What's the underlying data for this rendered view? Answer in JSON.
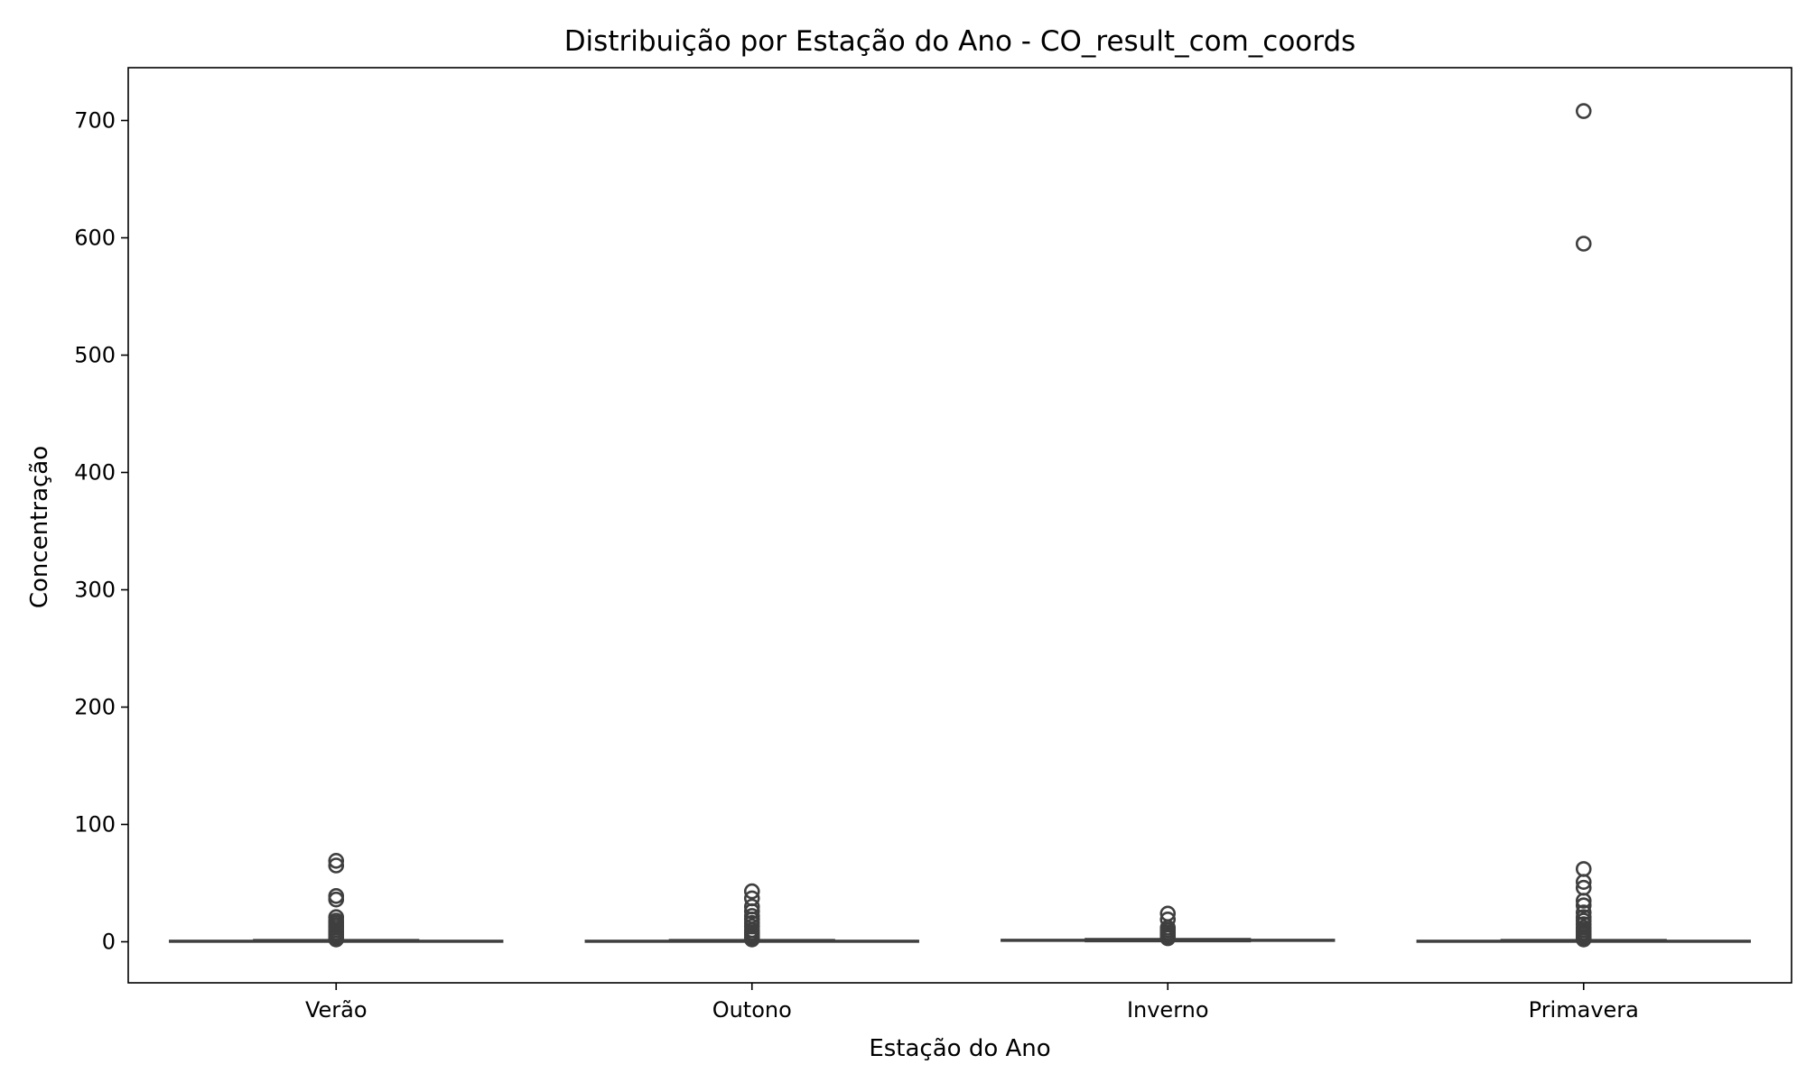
{
  "chart_data": {
    "type": "box",
    "title": "Distribuição por Estação do Ano - CO_result_com_coords",
    "xlabel": "Estação do Ano",
    "ylabel": "Concentração",
    "ylim": [
      -35,
      745
    ],
    "yticks": [
      0,
      100,
      200,
      300,
      400,
      500,
      600,
      700
    ],
    "grid": false,
    "categories": [
      "Verão",
      "Outono",
      "Inverno",
      "Primavera"
    ],
    "boxes": [
      {
        "category": "Verão",
        "whisker_low": 0,
        "q1": 0.3,
        "median": 0.6,
        "q3": 1.0,
        "whisker_high": 1.6,
        "outliers": [
          69,
          65,
          39,
          36,
          21,
          18,
          16,
          14,
          12,
          10,
          8,
          6,
          4,
          3,
          2
        ]
      },
      {
        "category": "Outono",
        "whisker_low": 0,
        "q1": 0.3,
        "median": 0.6,
        "q3": 1.0,
        "whisker_high": 1.6,
        "outliers": [
          43,
          37,
          30,
          26,
          22,
          19,
          16,
          13,
          10,
          8,
          6,
          4,
          3,
          2
        ]
      },
      {
        "category": "Inverno",
        "whisker_low": 0.3,
        "q1": 0.8,
        "median": 1.2,
        "q3": 1.8,
        "whisker_high": 2.5,
        "outliers": [
          24,
          19,
          12,
          10,
          8,
          6,
          5,
          4,
          3
        ]
      },
      {
        "category": "Primavera",
        "whisker_low": 0,
        "q1": 0.3,
        "median": 0.6,
        "q3": 1.0,
        "whisker_high": 1.6,
        "outliers": [
          708,
          595,
          62,
          51,
          46,
          35,
          31,
          25,
          21,
          18,
          15,
          12,
          10,
          8,
          6,
          4,
          3,
          2
        ]
      }
    ],
    "colors": {
      "box_fill": "#4c72b0",
      "line": "#3f3f3f",
      "outlier_edge": "#3f3f3f"
    }
  }
}
